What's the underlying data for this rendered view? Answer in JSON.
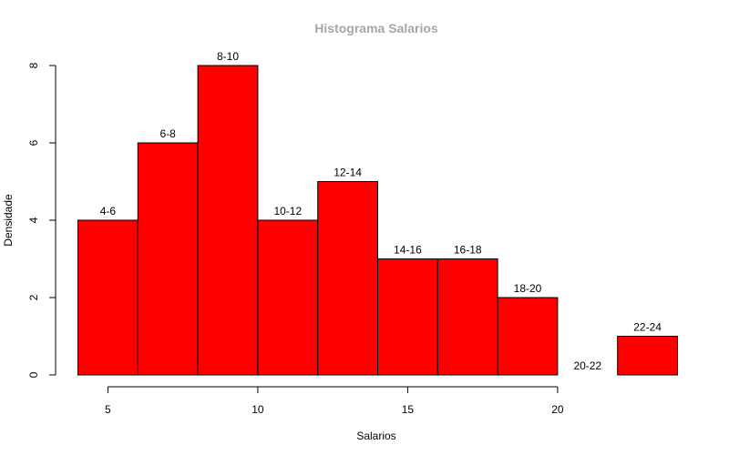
{
  "chart_data": {
    "type": "bar",
    "title": "Histograma Salarios",
    "xlabel": "Salarios",
    "ylabel": "Densidade",
    "bins": [
      {
        "start": 4,
        "end": 6,
        "value": 4,
        "label": "4-6"
      },
      {
        "start": 6,
        "end": 8,
        "value": 6,
        "label": "6-8"
      },
      {
        "start": 8,
        "end": 10,
        "value": 8,
        "label": "8-10"
      },
      {
        "start": 10,
        "end": 12,
        "value": 4,
        "label": "10-12"
      },
      {
        "start": 12,
        "end": 14,
        "value": 5,
        "label": "12-14"
      },
      {
        "start": 14,
        "end": 16,
        "value": 3,
        "label": "14-16"
      },
      {
        "start": 16,
        "end": 18,
        "value": 3,
        "label": "16-18"
      },
      {
        "start": 18,
        "end": 20,
        "value": 2,
        "label": "18-20"
      },
      {
        "start": 20,
        "end": 22,
        "value": 0,
        "label": "20-22"
      },
      {
        "start": 22,
        "end": 24,
        "value": 1,
        "label": "22-24"
      }
    ],
    "xticks": [
      "5",
      "10",
      "15",
      "20"
    ],
    "yticks": [
      "0",
      "2",
      "4",
      "6",
      "8"
    ],
    "xlim": [
      4,
      24
    ],
    "ylim": [
      0,
      8
    ],
    "grid": false,
    "bar_color": "#ff0000",
    "edge_color": "#000000"
  }
}
